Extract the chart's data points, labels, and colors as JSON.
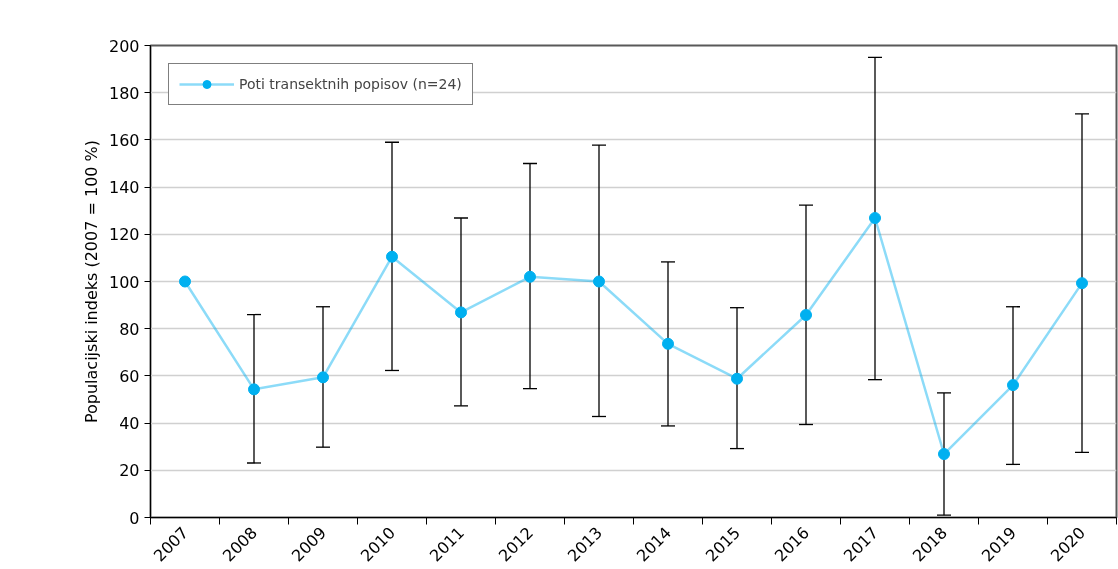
{
  "chart_data": {
    "type": "line",
    "ylabel": "Populacijski indeks (2007 = 100 %)",
    "categories": [
      "2007",
      "2008",
      "2009",
      "2010",
      "2011",
      "2012",
      "2013",
      "2014",
      "2015",
      "2016",
      "2017",
      "2018",
      "2019",
      "2020"
    ],
    "series": [
      {
        "name": "Poti transektnih popisov (n=24)",
        "color": "#00b0f0",
        "values": [
          100,
          54.3,
          59.4,
          110.5,
          86.9,
          102,
          100,
          73.6,
          58.8,
          85.8,
          126.9,
          26.9,
          56.1,
          99.3
        ],
        "errors": [
          null,
          [
            23.1,
            86
          ],
          [
            29.8,
            89.3
          ],
          [
            62.3,
            159
          ],
          [
            47.3,
            126.9
          ],
          [
            54.6,
            150
          ],
          [
            42.8,
            157.8
          ],
          [
            38.8,
            108.3
          ],
          [
            29.2,
            88.9
          ],
          [
            39.4,
            132.4
          ],
          [
            58.4,
            195
          ],
          [
            1,
            52.8
          ],
          [
            22.5,
            89.3
          ],
          [
            27.6,
            171
          ]
        ]
      }
    ],
    "ylim": [
      0,
      200
    ],
    "yticks": [
      0,
      20,
      40,
      60,
      80,
      100,
      120,
      140,
      160,
      180,
      200
    ],
    "grid": "y",
    "legend": "top left",
    "marker": "circle",
    "line_style": "solid"
  }
}
